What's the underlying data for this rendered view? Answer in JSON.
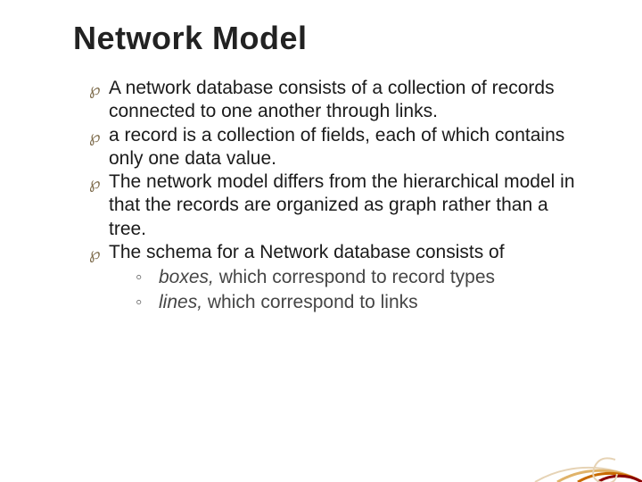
{
  "title": "Network Model",
  "title_fontsize": 36,
  "body_fontsize": 21,
  "text_color": "#1a1a1a",
  "bullet_marker_color": "#7c6a4a",
  "sub_text_color": "#454545",
  "sub_marker_color": "#6a6a6a",
  "background_color": "#ffffff",
  "deco_colors": {
    "ring_outer": "#8a0000",
    "ring_mid": "#c86a00",
    "ring_inner": "#e0b36a",
    "spiral": "#e6d3b5"
  },
  "bullets": [
    {
      "text": "A network database consists of a collection of records connected to one another through links."
    },
    {
      "text": "a record is a collection of fields, each of which contains only one data value."
    },
    {
      "text": "The network model differs from the hierarchical model in that the records are organized as graph rather than a tree."
    },
    {
      "text": "The schema for a Network database consists of",
      "subs": [
        {
          "italic": "boxes,",
          "rest": " which correspond to record types"
        },
        {
          "italic": "lines,",
          "rest": " which correspond to links"
        }
      ]
    }
  ]
}
